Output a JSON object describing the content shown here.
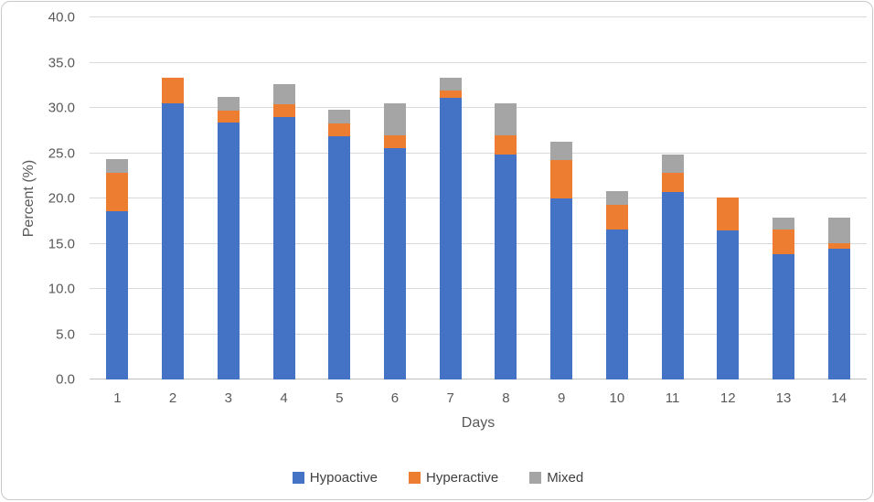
{
  "chart_data": {
    "type": "bar",
    "stacked": true,
    "title": "",
    "xlabel": "Days",
    "ylabel": "Percent (%)",
    "categories": [
      "1",
      "2",
      "3",
      "4",
      "5",
      "6",
      "7",
      "8",
      "9",
      "10",
      "11",
      "12",
      "13",
      "14"
    ],
    "series": [
      {
        "name": "Hypoactive",
        "color": "#4472c4",
        "values": [
          18.6,
          30.5,
          28.4,
          29.0,
          26.9,
          25.6,
          31.1,
          24.8,
          20.0,
          16.6,
          20.7,
          16.5,
          13.8,
          14.4
        ]
      },
      {
        "name": "Hyperactive",
        "color": "#ed7d31",
        "values": [
          4.2,
          2.8,
          1.3,
          1.4,
          1.4,
          1.4,
          0.8,
          2.2,
          4.2,
          2.7,
          2.1,
          3.6,
          2.8,
          0.7
        ]
      },
      {
        "name": "Mixed",
        "color": "#a5a5a5",
        "values": [
          1.5,
          0.0,
          1.5,
          2.2,
          1.5,
          3.5,
          1.4,
          3.5,
          2.1,
          1.5,
          2.1,
          0.0,
          1.3,
          2.8
        ]
      }
    ],
    "stack_totals": [
      24.3,
      33.3,
      31.2,
      32.6,
      29.8,
      30.5,
      33.3,
      30.5,
      26.3,
      20.8,
      24.9,
      20.1,
      17.9,
      17.9
    ],
    "ylim": [
      0,
      40
    ],
    "ytick_step": 5,
    "yticks": [
      "0.0",
      "5.0",
      "10.0",
      "15.0",
      "20.0",
      "25.0",
      "30.0",
      "35.0",
      "40.0"
    ],
    "grid": true,
    "legend_position": "bottom",
    "axis_text_color": "#595959",
    "gridline_color": "#d9d9d9"
  }
}
